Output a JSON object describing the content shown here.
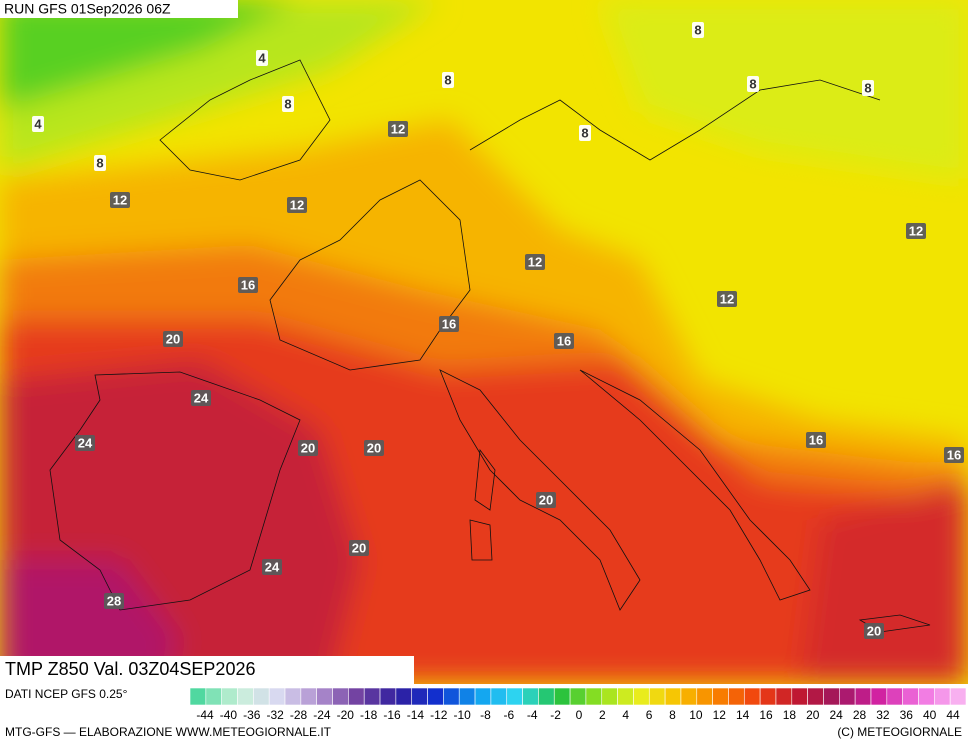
{
  "header": {
    "run": "RUN GFS 01Sep2026 06Z"
  },
  "map": {
    "contour_labels": [
      4,
      4,
      8,
      8,
      8,
      8,
      8,
      8,
      8,
      12,
      12,
      12,
      12,
      12,
      12,
      16,
      16,
      16,
      16,
      16,
      20,
      20,
      20,
      20,
      20,
      20,
      24,
      24,
      24,
      28
    ]
  },
  "footer": {
    "title": "TMP Z850 Val. 03Z04SEP2026",
    "source": "DATI NCEP GFS 0.25°",
    "credit": "MTG-GFS — ELABORAZIONE WWW.METEOGIORNALE.IT",
    "copyright": "(C) METEOGIORNALE",
    "scale_labels": [
      -44,
      -40,
      -36,
      -32,
      -28,
      -24,
      -20,
      -18,
      -16,
      -14,
      -12,
      -10,
      -8,
      -6,
      -4,
      -2,
      0,
      2,
      4,
      6,
      8,
      10,
      12,
      14,
      16,
      18,
      20,
      24,
      28,
      32,
      36,
      40,
      44
    ]
  }
}
